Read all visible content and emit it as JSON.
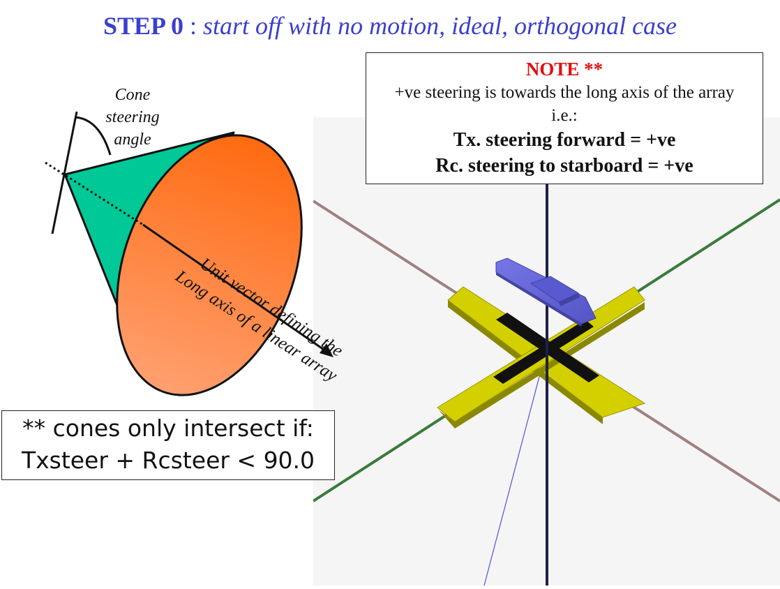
{
  "title": {
    "step": "STEP 0",
    "separator": " : ",
    "subtitle": "start off with no motion, ideal, orthogonal case"
  },
  "cone_diagram": {
    "label_lines": [
      "Cone",
      "steering",
      "angle"
    ],
    "unit_vector_label": "Unit vector defining the",
    "long_axis_label": "Long axis of a linear array",
    "colors": {
      "cone_side": "#00c896",
      "cone_base_top": "#ff6a10",
      "cone_base_bottom": "#ffa070"
    }
  },
  "note": {
    "heading": "NOTE **",
    "line1": "+ve steering is towards the long axis of the array",
    "line2": "i.e.:",
    "tx": "Tx. steering forward  = +ve",
    "rc": "Rc. steering to starboard  = +ve"
  },
  "condition": {
    "line1": "** cones only intersect if:",
    "line2": "Txsteer + Rcsteer < 90.0"
  },
  "scene3d": {
    "colors": {
      "background": "#f5f5f5",
      "array_arms": "#d4d000",
      "array_arms_side": "#8a8800",
      "array_black": "#111111",
      "ship": "#6464dc",
      "axis_vertical": "#1f1f4a",
      "axis_green": "#3a7a3a",
      "axis_brown": "#a08080",
      "ray": "#5050e0"
    }
  }
}
